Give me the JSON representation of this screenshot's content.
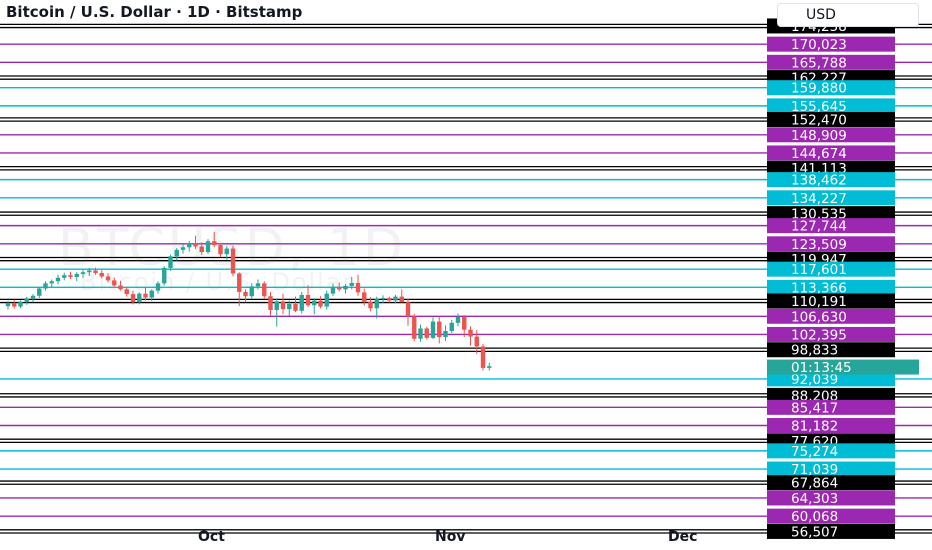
{
  "header": {
    "title": "Bitcoin / U.S. Dollar · 1D · Bitstamp",
    "currency": "USD"
  },
  "watermark": {
    "symbol": "BTCUSD, 1D",
    "name": "Bitcoin / U.S. Dollar"
  },
  "colors": {
    "purple": "#9c27b0",
    "cyan": "#00bcd4",
    "black": "#000000",
    "up": "#26a69a",
    "down": "#ef5350"
  },
  "chart_data": {
    "type": "candlestick",
    "ylim": [
      56500,
      174500
    ],
    "x_labels": [
      {
        "label": "Oct",
        "index": 34
      },
      {
        "label": "Nov",
        "index": 67
      },
      {
        "label": "Dec",
        "index": 97
      }
    ],
    "levels": [
      {
        "value": 174258,
        "label": "174,258",
        "color": "black"
      },
      {
        "value": 170023,
        "label": "170,023",
        "color": "purple"
      },
      {
        "value": 165788,
        "label": "165,788",
        "color": "purple"
      },
      {
        "value": 162227,
        "label": "162,227",
        "color": "black"
      },
      {
        "value": 159880,
        "label": "159,880",
        "color": "cyan"
      },
      {
        "value": 155645,
        "label": "155,645",
        "color": "cyan"
      },
      {
        "value": 152470,
        "label": "152,470",
        "color": "black"
      },
      {
        "value": 148909,
        "label": "148,909",
        "color": "purple"
      },
      {
        "value": 144674,
        "label": "144,674",
        "color": "purple"
      },
      {
        "value": 141113,
        "label": "141,113",
        "color": "black"
      },
      {
        "value": 138462,
        "label": "138,462",
        "color": "cyan"
      },
      {
        "value": 134227,
        "label": "134,227",
        "color": "cyan"
      },
      {
        "value": 130535,
        "label": "130,535",
        "color": "black"
      },
      {
        "value": 127744,
        "label": "127,744",
        "color": "purple"
      },
      {
        "value": 123509,
        "label": "123,509",
        "color": "purple"
      },
      {
        "value": 119947,
        "label": "119,947",
        "color": "black"
      },
      {
        "value": 117601,
        "label": "117,601",
        "color": "cyan"
      },
      {
        "value": 113366,
        "label": "113,366",
        "color": "cyan"
      },
      {
        "value": 110191,
        "label": "110,191",
        "color": "black"
      },
      {
        "value": 106630,
        "label": "106,630",
        "color": "purple"
      },
      {
        "value": 102395,
        "label": "102,395",
        "color": "purple"
      },
      {
        "value": 98833,
        "label": "98,833",
        "color": "black"
      },
      {
        "value": 92039,
        "label": "92,039",
        "color": "cyan"
      },
      {
        "value": 88208,
        "label": "88,208",
        "color": "black"
      },
      {
        "value": 85417,
        "label": "85,417",
        "color": "purple"
      },
      {
        "value": 81182,
        "label": "81,182",
        "color": "purple"
      },
      {
        "value": 77620,
        "label": "77,620",
        "color": "black"
      },
      {
        "value": 75274,
        "label": "75,274",
        "color": "cyan"
      },
      {
        "value": 71039,
        "label": "71,039",
        "color": "cyan"
      },
      {
        "value": 67864,
        "label": "67,864",
        "color": "black"
      },
      {
        "value": 64303,
        "label": "64,303",
        "color": "purple"
      },
      {
        "value": 60068,
        "label": "60,068",
        "color": "purple"
      },
      {
        "value": 56507,
        "label": "56,507",
        "color": "black"
      }
    ],
    "current_price": {
      "value": 94800,
      "label": "01:13:45",
      "color": "#26a69a"
    },
    "candles": [
      [
        109000,
        110200,
        108200,
        109600
      ],
      [
        109600,
        110500,
        108400,
        108900
      ],
      [
        108900,
        110300,
        108500,
        110000
      ],
      [
        110000,
        111200,
        109300,
        110800
      ],
      [
        110800,
        111800,
        109900,
        111400
      ],
      [
        111400,
        113500,
        110900,
        113100
      ],
      [
        113100,
        114800,
        112600,
        114300
      ],
      [
        114300,
        115200,
        113400,
        114800
      ],
      [
        114800,
        116300,
        114100,
        115600
      ],
      [
        115600,
        116800,
        115000,
        116200
      ],
      [
        116200,
        117000,
        115300,
        115800
      ],
      [
        115800,
        116900,
        114800,
        116500
      ],
      [
        116500,
        117500,
        115600,
        116900
      ],
      [
        116900,
        117900,
        116000,
        117300
      ],
      [
        117300,
        118000,
        116300,
        116700
      ],
      [
        116700,
        117400,
        115500,
        115900
      ],
      [
        115900,
        116700,
        114500,
        115000
      ],
      [
        115000,
        115600,
        113400,
        113800
      ],
      [
        113800,
        114900,
        112600,
        112900
      ],
      [
        112900,
        113500,
        111200,
        111800
      ],
      [
        111800,
        112600,
        109400,
        109900
      ],
      [
        109900,
        112200,
        109400,
        111900
      ],
      [
        111900,
        113300,
        110300,
        111000
      ],
      [
        111000,
        112900,
        110200,
        112600
      ],
      [
        112600,
        114800,
        111900,
        114300
      ],
      [
        114300,
        118300,
        113800,
        117900
      ],
      [
        117900,
        121000,
        117200,
        120600
      ],
      [
        120600,
        122500,
        119600,
        122100
      ],
      [
        122100,
        123400,
        121200,
        122700
      ],
      [
        122700,
        124200,
        121700,
        123600
      ],
      [
        123600,
        125400,
        122300,
        122900
      ],
      [
        122900,
        123900,
        120900,
        121600
      ],
      [
        121600,
        124600,
        121100,
        124100
      ],
      [
        124100,
        126300,
        122700,
        123200
      ],
      [
        123200,
        123600,
        120400,
        121100
      ],
      [
        121100,
        122900,
        119800,
        122400
      ],
      [
        122400,
        123100,
        115900,
        116600
      ],
      [
        116600,
        116900,
        109000,
        112300
      ],
      [
        112300,
        112900,
        109900,
        111300
      ],
      [
        111300,
        114300,
        110600,
        113600
      ],
      [
        113600,
        115200,
        112900,
        114300
      ],
      [
        114300,
        114800,
        110700,
        111300
      ],
      [
        111300,
        112300,
        106800,
        108100
      ],
      [
        108100,
        110800,
        104200,
        110100
      ],
      [
        110100,
        111900,
        107100,
        108300
      ],
      [
        108300,
        110300,
        106700,
        109500
      ],
      [
        109500,
        111200,
        107600,
        107900
      ],
      [
        107900,
        112300,
        107300,
        111600
      ],
      [
        111600,
        113900,
        108800,
        109200
      ],
      [
        109200,
        110900,
        107100,
        110300
      ],
      [
        110300,
        111300,
        108500,
        108900
      ],
      [
        108900,
        112600,
        108200,
        111900
      ],
      [
        111900,
        114300,
        111300,
        113500
      ],
      [
        113500,
        114500,
        112400,
        112900
      ],
      [
        112900,
        114100,
        111900,
        113700
      ],
      [
        113700,
        115800,
        112900,
        114400
      ],
      [
        114400,
        116300,
        111400,
        112200
      ],
      [
        112200,
        113100,
        109100,
        110000
      ],
      [
        110000,
        111100,
        107800,
        108500
      ],
      [
        108500,
        111200,
        106100,
        110600
      ],
      [
        110600,
        111500,
        109700,
        110900
      ],
      [
        110900,
        111200,
        109800,
        110300
      ],
      [
        110300,
        111600,
        109600,
        111200
      ],
      [
        111200,
        112900,
        110000,
        109900
      ],
      [
        109900,
        110600,
        104400,
        106600
      ],
      [
        106600,
        107200,
        100800,
        101400
      ],
      [
        101400,
        104700,
        100700,
        103800
      ],
      [
        103800,
        104200,
        101200,
        101600
      ],
      [
        101600,
        106400,
        101300,
        105400
      ],
      [
        105400,
        106500,
        100300,
        101800
      ],
      [
        101800,
        104500,
        100900,
        103200
      ],
      [
        103200,
        105800,
        102700,
        105100
      ],
      [
        105100,
        107300,
        104300,
        106500
      ],
      [
        106500,
        106900,
        101800,
        103500
      ],
      [
        103500,
        104300,
        99800,
        101900
      ],
      [
        101900,
        103400,
        97800,
        99600
      ],
      [
        99600,
        100200,
        94000,
        94600
      ],
      [
        94600,
        95800,
        94000,
        95000
      ]
    ]
  }
}
